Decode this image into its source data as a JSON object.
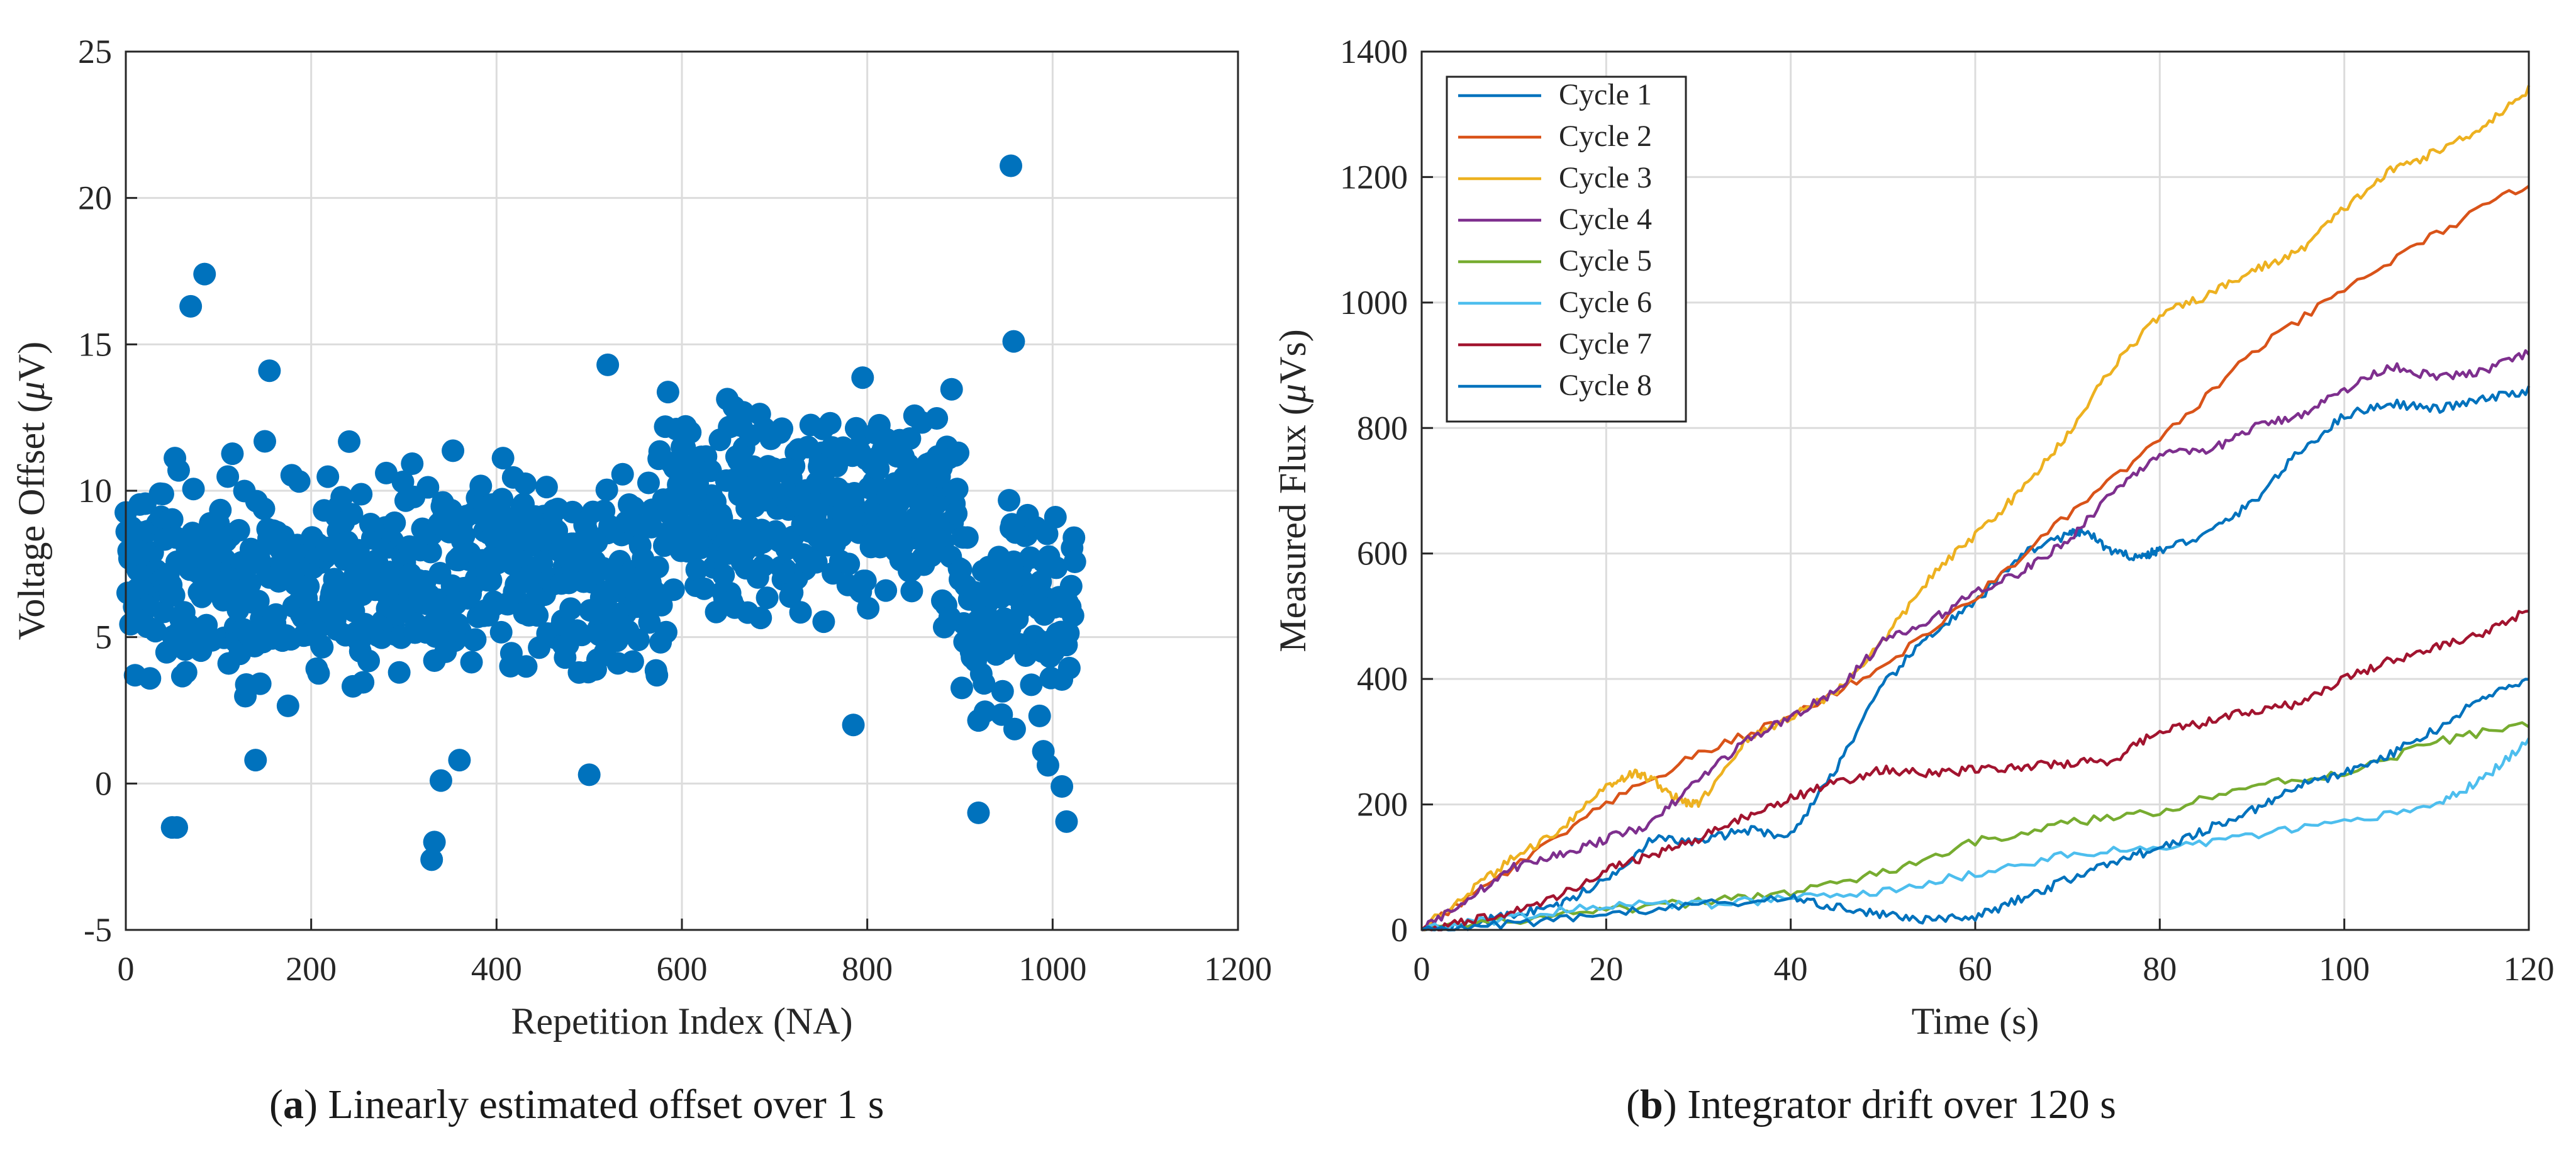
{
  "chart_data": [
    {
      "type": "scatter",
      "id": "a",
      "title": "",
      "xlabel": "Repetition Index (NA)",
      "ylabel_prefix": "Voltage Offset (",
      "ylabel_unit_greek": "μ",
      "ylabel_suffix": "V)",
      "xlim": [
        0,
        1200
      ],
      "ylim": [
        -5,
        25
      ],
      "xticks": [
        0,
        200,
        400,
        600,
        800,
        1000,
        1200
      ],
      "yticks": [
        -5,
        0,
        5,
        10,
        15,
        20,
        25
      ],
      "grid": true,
      "marker_color": "#0072bd",
      "points_x": [],
      "points_y": [],
      "num_points": 1025,
      "highlight_points": [
        [
          955,
          21.1
        ],
        [
          85,
          17.4
        ],
        [
          958,
          15.1
        ],
        [
          70,
          16.3
        ],
        [
          520,
          14.3
        ],
        [
          155,
          14.1
        ],
        [
          50,
          -1.5
        ],
        [
          55,
          -1.5
        ],
        [
          330,
          -2.6
        ],
        [
          333,
          -2.0
        ],
        [
          920,
          -1.0
        ],
        [
          1015,
          -1.3
        ],
        [
          1010,
          -0.1
        ],
        [
          140,
          0.8
        ],
        [
          360,
          0.8
        ],
        [
          500,
          0.3
        ],
        [
          340,
          0.1
        ],
        [
          785,
          2.0
        ],
        [
          990,
          1.1
        ]
      ],
      "caption_label": "a",
      "caption_text": " Linearly estimated offset over 1 s"
    },
    {
      "type": "line",
      "id": "b",
      "title": "",
      "xlabel": "Time (s)",
      "ylabel_prefix": "Measured Flux (",
      "ylabel_unit_greek": "μ",
      "ylabel_suffix": "Vs)",
      "xlim": [
        0,
        120
      ],
      "ylim": [
        0,
        1400
      ],
      "xticks": [
        0,
        20,
        40,
        60,
        80,
        100,
        120
      ],
      "yticks": [
        0,
        200,
        400,
        600,
        800,
        1000,
        1200,
        1400
      ],
      "grid": true,
      "legend_position": "top-left",
      "series": [
        {
          "name": "Cycle 1",
          "color": "#0072bd",
          "x": [
            0,
            5,
            10,
            15,
            20,
            25,
            30,
            35,
            40,
            45,
            50,
            55,
            60,
            65,
            70,
            72,
            75,
            78,
            80,
            85,
            90,
            95,
            100,
            105,
            110,
            115,
            120
          ],
          "y": [
            0,
            10,
            25,
            40,
            80,
            145,
            140,
            160,
            150,
            260,
            390,
            470,
            520,
            600,
            630,
            635,
            600,
            595,
            605,
            630,
            680,
            760,
            820,
            840,
            830,
            845,
            860
          ]
        },
        {
          "name": "Cycle 2",
          "color": "#d95319",
          "x": [
            0,
            10,
            20,
            30,
            40,
            50,
            60,
            70,
            80,
            90,
            100,
            110,
            120
          ],
          "y": [
            0,
            100,
            200,
            280,
            340,
            420,
            530,
            660,
            780,
            920,
            1020,
            1110,
            1190
          ]
        },
        {
          "name": "Cycle 3",
          "color": "#edb120",
          "x": [
            0,
            5,
            10,
            15,
            20,
            23,
            25,
            28,
            30,
            35,
            40,
            45,
            50,
            55,
            60,
            65,
            70,
            75,
            80,
            85,
            90,
            95,
            100,
            105,
            110,
            115,
            120
          ],
          "y": [
            0,
            60,
            115,
            160,
            230,
            250,
            240,
            205,
            200,
            300,
            340,
            380,
            460,
            560,
            630,
            700,
            790,
            900,
            980,
            1010,
            1050,
            1080,
            1150,
            1210,
            1240,
            1280,
            1340
          ]
        },
        {
          "name": "Cycle 4",
          "color": "#7e2f8e",
          "x": [
            0,
            5,
            10,
            15,
            20,
            25,
            30,
            35,
            40,
            45,
            50,
            55,
            60,
            65,
            70,
            75,
            80,
            85,
            90,
            95,
            100,
            105,
            110,
            115,
            120
          ],
          "y": [
            0,
            50,
            100,
            120,
            145,
            170,
            240,
            300,
            340,
            380,
            460,
            490,
            540,
            570,
            620,
            700,
            760,
            760,
            800,
            820,
            860,
            900,
            880,
            890,
            920
          ]
        },
        {
          "name": "Cycle 5",
          "color": "#77ac30",
          "x": [
            0,
            10,
            20,
            30,
            40,
            50,
            60,
            70,
            80,
            90,
            100,
            110,
            120
          ],
          "y": [
            0,
            15,
            30,
            45,
            60,
            90,
            140,
            170,
            190,
            230,
            250,
            300,
            330
          ]
        },
        {
          "name": "Cycle 6",
          "color": "#4dbeee",
          "x": [
            0,
            10,
            20,
            30,
            40,
            50,
            60,
            70,
            80,
            90,
            100,
            110,
            115,
            120
          ],
          "y": [
            0,
            20,
            40,
            40,
            50,
            60,
            90,
            120,
            130,
            150,
            170,
            200,
            240,
            300
          ]
        },
        {
          "name": "Cycle 7",
          "color": "#a2142f",
          "x": [
            0,
            5,
            10,
            15,
            20,
            25,
            30,
            35,
            40,
            45,
            50,
            55,
            60,
            65,
            70,
            75,
            80,
            85,
            90,
            95,
            100,
            105,
            110,
            115,
            120
          ],
          "y": [
            0,
            15,
            30,
            55,
            95,
            120,
            145,
            180,
            210,
            235,
            255,
            250,
            255,
            260,
            265,
            270,
            320,
            330,
            350,
            360,
            400,
            430,
            450,
            470,
            510
          ]
        },
        {
          "name": "Cycle 8",
          "color": "#0072bd",
          "x": [
            0,
            10,
            20,
            30,
            40,
            45,
            50,
            55,
            60,
            65,
            70,
            75,
            80,
            85,
            90,
            95,
            100,
            105,
            110,
            115,
            120
          ],
          "y": [
            0,
            10,
            25,
            40,
            50,
            35,
            25,
            15,
            20,
            50,
            80,
            110,
            130,
            160,
            190,
            230,
            250,
            280,
            320,
            370,
            400
          ]
        }
      ],
      "caption_label": "b",
      "caption_text": " Integrator drift over 120 s"
    }
  ]
}
